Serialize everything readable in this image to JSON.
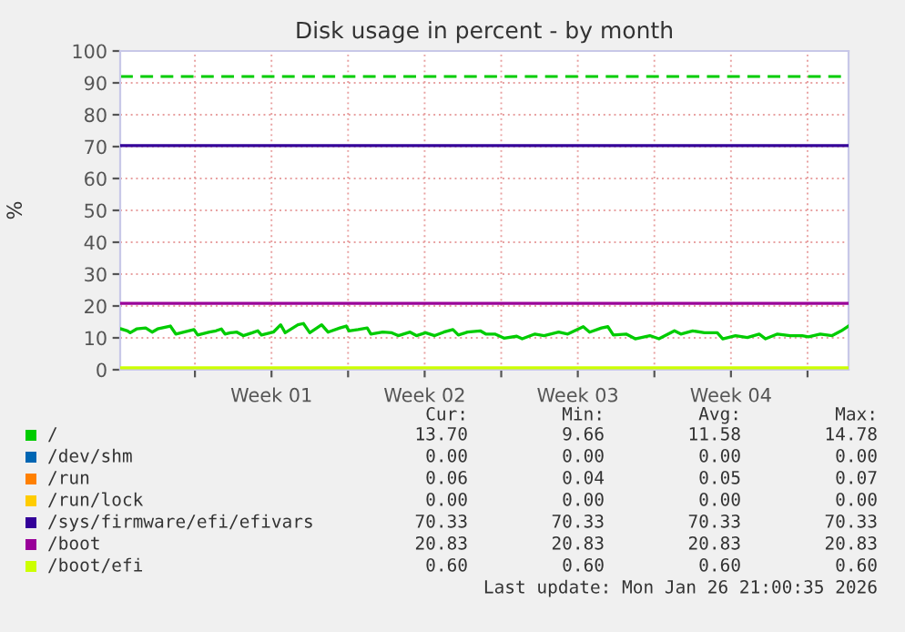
{
  "chart_data": {
    "type": "line",
    "title": "Disk usage in percent - by month",
    "ylabel": "%",
    "xlim": [
      "2025-12-25T14:00",
      "2026-01-27T21:00"
    ],
    "ylim": [
      0,
      100
    ],
    "xticks": [
      {
        "value": "2025-12-29",
        "label": null
      },
      {
        "value": "2026-01-01T12:00",
        "label": "Week 01"
      },
      {
        "value": "2026-01-05",
        "label": null
      },
      {
        "value": "2026-01-08T12:00",
        "label": "Week 02"
      },
      {
        "value": "2026-01-12",
        "label": null
      },
      {
        "value": "2026-01-15T12:00",
        "label": "Week 03"
      },
      {
        "value": "2026-01-19",
        "label": null
      },
      {
        "value": "2026-01-22T12:00",
        "label": "Week 04"
      },
      {
        "value": "2026-01-26",
        "label": null
      }
    ],
    "yticks": [
      0,
      10,
      20,
      30,
      40,
      50,
      60,
      70,
      80,
      90,
      100
    ],
    "grid": true,
    "legend": "bottom",
    "marker": "none",
    "line_style": "solid",
    "ref_lines": [
      {
        "axis": "y",
        "value": 92,
        "label": null,
        "color": "#00cc00",
        "line_style": "dashed"
      }
    ],
    "series": [
      {
        "name": "/",
        "color": "#00cc00",
        "x": [
          "2025-12-25T15:00",
          "2025-12-25T22:00",
          "2025-12-26T01:00",
          "2025-12-26T08:00",
          "2025-12-26T18:00",
          "2025-12-27T01:00",
          "2025-12-27T07:00",
          "2025-12-27T21:00",
          "2025-12-28T03:00",
          "2025-12-28T17:00",
          "2025-12-28T23:00",
          "2025-12-29T03:00",
          "2025-12-29T16:00",
          "2025-12-29T23:00",
          "2025-12-30T05:00",
          "2025-12-30T09:00",
          "2025-12-30T15:00",
          "2025-12-30T22:00",
          "2025-12-31T05:00",
          "2025-12-31T15:00",
          "2025-12-31T21:00",
          "2026-01-01T01:00",
          "2026-01-01T14:00",
          "2026-01-01T22:00",
          "2026-01-02T03:00",
          "2026-01-02T17:00",
          "2026-01-02T23:00",
          "2026-01-03T06:00",
          "2026-01-03T19:00",
          "2026-01-04T02:00",
          "2026-01-04T15:00",
          "2026-01-04T22:00",
          "2026-01-05T01:00",
          "2026-01-05T11:00",
          "2026-01-05T21:00",
          "2026-01-06T01:00",
          "2026-01-06T14:00",
          "2026-01-07T00:00",
          "2026-01-07T07:00",
          "2026-01-07T20:00",
          "2026-01-08T03:00",
          "2026-01-08T13:00",
          "2026-01-08T23:00",
          "2026-01-09T09:00",
          "2026-01-09T19:00",
          "2026-01-10T01:00",
          "2026-01-10T11:00",
          "2026-01-11T01:00",
          "2026-01-11T07:00",
          "2026-01-11T17:00",
          "2026-01-12T03:00",
          "2026-01-12T17:00",
          "2026-01-12T23:00",
          "2026-01-13T13:00",
          "2026-01-13T23:00",
          "2026-01-14T15:00",
          "2026-01-15T01:00",
          "2026-01-15T18:00",
          "2026-01-16T01:00",
          "2026-01-16T14:00",
          "2026-01-16T21:00",
          "2026-01-17T03:00",
          "2026-01-17T17:00",
          "2026-01-18T03:00",
          "2026-01-18T19:00",
          "2026-01-19T05:00",
          "2026-01-19T22:00",
          "2026-01-20T05:00",
          "2026-01-20T18:00",
          "2026-01-21T07:00",
          "2026-01-21T21:00",
          "2026-01-22T03:00",
          "2026-01-22T17:00",
          "2026-01-23T06:00",
          "2026-01-23T19:00",
          "2026-01-24T02:00",
          "2026-01-24T15:00",
          "2026-01-25T05:00",
          "2026-01-25T18:00",
          "2026-01-26T01:00",
          "2026-01-26T14:00",
          "2026-01-27T03:00",
          "2026-01-27T13:00",
          "2026-01-27T21:00"
        ],
        "values": [
          12.8,
          12.2,
          11.6,
          12.8,
          13.1,
          11.8,
          12.8,
          13.7,
          11.2,
          12.2,
          12.6,
          10.9,
          11.8,
          12.2,
          12.8,
          11.2,
          11.6,
          11.8,
          10.7,
          11.6,
          12.2,
          10.9,
          11.8,
          14.1,
          11.6,
          14.1,
          14.5,
          11.6,
          14.1,
          11.8,
          13.1,
          13.7,
          12.2,
          12.6,
          13.1,
          11.2,
          11.8,
          11.6,
          10.7,
          11.8,
          10.7,
          11.6,
          10.7,
          11.8,
          12.6,
          10.9,
          11.8,
          12.2,
          11.2,
          11.2,
          9.9,
          10.5,
          9.7,
          11.2,
          10.7,
          11.8,
          11.2,
          13.5,
          11.8,
          13.1,
          13.5,
          10.9,
          11.2,
          9.7,
          10.7,
          9.7,
          12.2,
          11.2,
          12.2,
          11.6,
          11.6,
          9.7,
          10.7,
          10.1,
          11.2,
          9.7,
          11.2,
          10.7,
          10.7,
          10.3,
          11.2,
          10.7,
          12.2,
          13.7
        ]
      },
      {
        "name": "/dev/shm",
        "color": "#0066b3",
        "values": [
          null
        ]
      },
      {
        "name": "/run",
        "color": "#ff8000",
        "values": [
          null
        ]
      },
      {
        "name": "/run/lock",
        "color": "#ffcc00",
        "values": [
          null
        ]
      },
      {
        "name": "/sys/firmware/efi/efivars",
        "color": "#330099",
        "x": [
          "2025-12-25T14:00",
          "2026-01-27T21:00"
        ],
        "values": [
          70.3,
          70.3
        ]
      },
      {
        "name": "/boot",
        "color": "#990099",
        "x": [
          "2025-12-25T14:00",
          "2026-01-27T21:00"
        ],
        "values": [
          20.8,
          20.8
        ]
      },
      {
        "name": "/boot/efi",
        "color": "#ccff00",
        "x": [
          "2025-12-25T14:00",
          "2026-01-27T21:00"
        ],
        "values": [
          0.6,
          0.6
        ]
      }
    ],
    "annotations": [
      "Cur:",
      "Min:",
      "Avg:",
      "Max:",
      "13.70",
      "9.66",
      "11.58",
      "14.78",
      "0.00",
      "0.00",
      "0.00",
      "0.00",
      "0.06",
      "0.04",
      "0.05",
      "0.07",
      "0.00",
      "0.00",
      "0.00",
      "0.00",
      "70.33",
      "70.33",
      "70.33",
      "70.33",
      "20.83",
      "20.83",
      "20.83",
      "20.83",
      "0.60",
      "0.60",
      "0.60",
      "0.60",
      "Last update: Mon Jan 26 21:00:35 2026"
    ]
  }
}
